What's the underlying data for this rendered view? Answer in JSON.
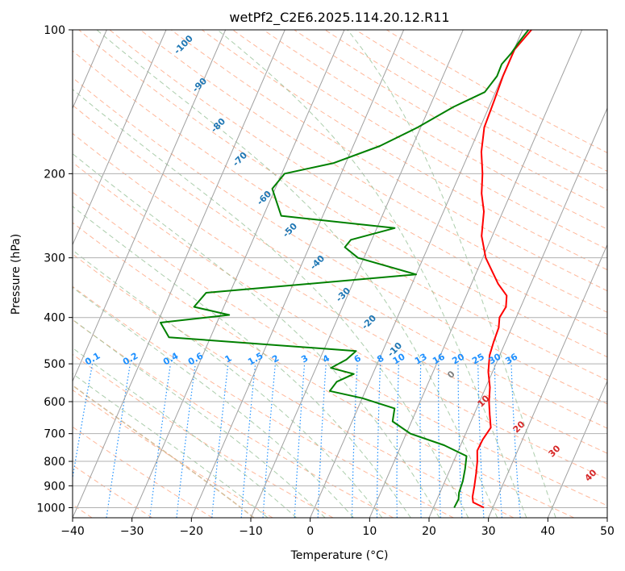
{
  "chart_data": {
    "type": "line",
    "subtype": "skew-t log-p sounding",
    "title": "wetPf2_C2E6.2025.114.20.12.R11",
    "xlabel": "Temperature (°C)",
    "ylabel": "Pressure (hPa)",
    "xlim": [
      -40,
      50
    ],
    "ylim": [
      1050,
      100
    ],
    "y_scale": "log",
    "x_ticks": [
      -40,
      -30,
      -20,
      -10,
      0,
      10,
      20,
      30,
      40,
      50
    ],
    "y_ticks": [
      100,
      200,
      300,
      400,
      500,
      600,
      700,
      800,
      900,
      1000
    ],
    "grid": true,
    "colors": {
      "temperature": "#ff0000",
      "dewpoint": "#008000",
      "isotherm": "#a0a0a0",
      "grid": "#b0b0b0",
      "dry_adiabat": "#ffa07a",
      "moist_adiabat": "#8fbc8f",
      "mixing_ratio": "#1e90ff",
      "isotherm_label": "#1f77b4",
      "isotherm_label_warm": "#d62728",
      "zero_label": "#808080",
      "tan_curve": "#d2b48c"
    },
    "isotherm_labels": [
      "-100",
      "-90",
      "-80",
      "-70",
      "-60",
      "-50",
      "-40",
      "-30",
      "-20",
      "-10",
      "0",
      "10",
      "20",
      "30",
      "40"
    ],
    "mixing_ratio_labels": [
      "0.1",
      "0.2",
      "0.4",
      "0.6",
      "1",
      "1.5",
      "2",
      "3",
      "4",
      "6",
      "8",
      "10",
      "13",
      "16",
      "20",
      "25",
      "30",
      "36"
    ],
    "series": [
      {
        "name": "temperature",
        "points": [
          {
            "p": 1000,
            "t": 28.5
          },
          {
            "p": 975,
            "t": 26.3
          },
          {
            "p": 950,
            "t": 25.8
          },
          {
            "p": 900,
            "t": 25.3
          },
          {
            "p": 850,
            "t": 24.7
          },
          {
            "p": 800,
            "t": 24.0
          },
          {
            "p": 760,
            "t": 23.2
          },
          {
            "p": 720,
            "t": 23.3
          },
          {
            "p": 680,
            "t": 23.8
          },
          {
            "p": 640,
            "t": 22.7
          },
          {
            "p": 600,
            "t": 21.6
          },
          {
            "p": 560,
            "t": 20.7
          },
          {
            "p": 520,
            "t": 19.3
          },
          {
            "p": 480,
            "t": 18.3
          },
          {
            "p": 450,
            "t": 18.0
          },
          {
            "p": 420,
            "t": 17.8
          },
          {
            "p": 400,
            "t": 17.2
          },
          {
            "p": 380,
            "t": 17.5
          },
          {
            "p": 360,
            "t": 16.8
          },
          {
            "p": 340,
            "t": 14.5
          },
          {
            "p": 300,
            "t": 10.5
          },
          {
            "p": 270,
            "t": 8.2
          },
          {
            "p": 240,
            "t": 6.8
          },
          {
            "p": 220,
            "t": 5.1
          },
          {
            "p": 200,
            "t": 3.8
          },
          {
            "p": 180,
            "t": 2.0
          },
          {
            "p": 160,
            "t": 0.7
          },
          {
            "p": 140,
            "t": 0.4
          },
          {
            "p": 125,
            "t": 0.1
          },
          {
            "p": 110,
            "t": 0.1
          },
          {
            "p": 100,
            "t": 1.5
          }
        ]
      },
      {
        "name": "dewpoint",
        "points": [
          {
            "p": 1000,
            "t": 23.5
          },
          {
            "p": 960,
            "t": 23.6
          },
          {
            "p": 930,
            "t": 23.2
          },
          {
            "p": 880,
            "t": 23.0
          },
          {
            "p": 830,
            "t": 22.5
          },
          {
            "p": 780,
            "t": 21.8
          },
          {
            "p": 740,
            "t": 17.2
          },
          {
            "p": 700,
            "t": 10.7
          },
          {
            "p": 660,
            "t": 6.8
          },
          {
            "p": 620,
            "t": 6.2
          },
          {
            "p": 590,
            "t": 0.0
          },
          {
            "p": 570,
            "t": -6.0
          },
          {
            "p": 545,
            "t": -5.5
          },
          {
            "p": 525,
            "t": -3.2
          },
          {
            "p": 510,
            "t": -7.5
          },
          {
            "p": 490,
            "t": -5.5
          },
          {
            "p": 470,
            "t": -4.5
          },
          {
            "p": 440,
            "t": -37.0
          },
          {
            "p": 410,
            "t": -39.5
          },
          {
            "p": 395,
            "t": -28.5
          },
          {
            "p": 380,
            "t": -35.0
          },
          {
            "p": 355,
            "t": -34.0
          },
          {
            "p": 325,
            "t": 0.0
          },
          {
            "p": 300,
            "t": -11.0
          },
          {
            "p": 285,
            "t": -14.0
          },
          {
            "p": 275,
            "t": -13.5
          },
          {
            "p": 260,
            "t": -7.0
          },
          {
            "p": 245,
            "t": -27.0
          },
          {
            "p": 215,
            "t": -30.5
          },
          {
            "p": 200,
            "t": -29.5
          },
          {
            "p": 190,
            "t": -22.0
          },
          {
            "p": 175,
            "t": -15.5
          },
          {
            "p": 160,
            "t": -10.5
          },
          {
            "p": 145,
            "t": -6.0
          },
          {
            "p": 135,
            "t": -1.8
          },
          {
            "p": 125,
            "t": -0.9
          },
          {
            "p": 118,
            "t": -1.0
          },
          {
            "p": 112,
            "t": -0.2
          },
          {
            "p": 106,
            "t": 0.3
          },
          {
            "p": 100,
            "t": 1.0
          }
        ]
      }
    ]
  }
}
